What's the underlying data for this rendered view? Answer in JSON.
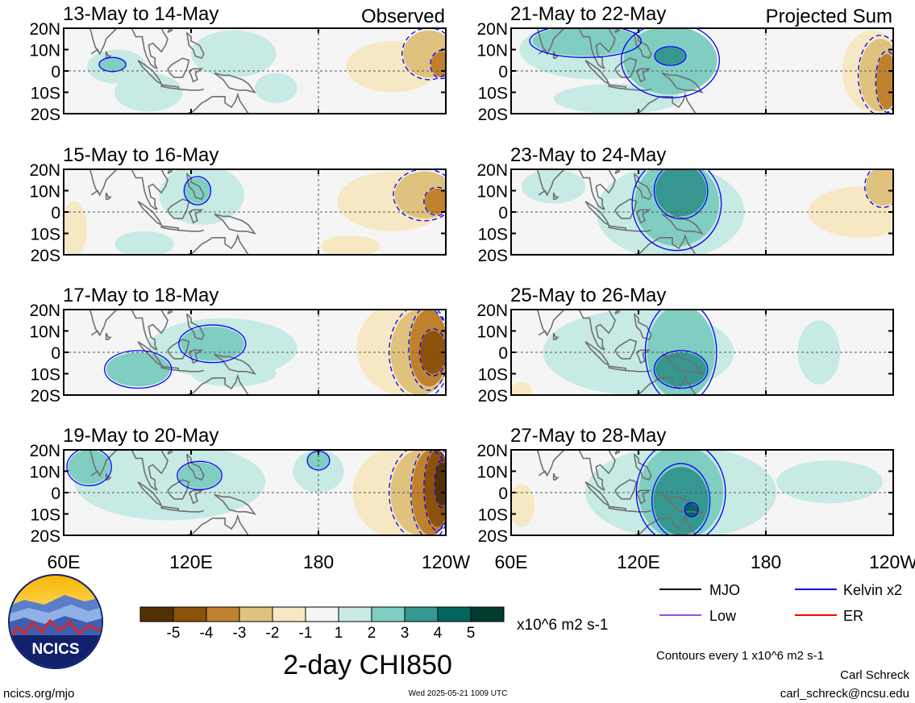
{
  "header": {
    "left_tag": "Observed",
    "right_tag": "Projected Sum"
  },
  "chart_data": {
    "type": "heatmap",
    "variable": "2-day CHI850",
    "units": "x10^6 m2 s-1",
    "lat_ticks": [
      "20N",
      "10N",
      "0",
      "10S",
      "20S"
    ],
    "lon_ticks": [
      "60E",
      "120E",
      "180",
      "120W"
    ],
    "colorbar": {
      "tick_labels": [
        "-5",
        "-4",
        "-3",
        "-2",
        "-1",
        "1",
        "2",
        "3",
        "4",
        "5"
      ],
      "colors": [
        "#543005",
        "#8c510a",
        "#bf812d",
        "#dfc27d",
        "#f6e8c3",
        "#f5f5f5",
        "#c7eae5",
        "#80cdc1",
        "#35978f",
        "#01665e",
        "#003c30"
      ]
    },
    "contour_note": "Contours every 1 x10^6 m2 s-1",
    "legend": [
      {
        "label": "MJO",
        "color": "#000000"
      },
      {
        "label": "Kelvin x2",
        "color": "#0000ff"
      },
      {
        "label": "Low",
        "color": "#9b4fd8"
      },
      {
        "label": "ER",
        "color": "#ff0000"
      }
    ],
    "panels": [
      {
        "title": "13-May to 14-May",
        "tag": "Observed",
        "blobs": [
          {
            "lon": 85,
            "lat": 2,
            "rx": 14,
            "ry": 8,
            "level": 1
          },
          {
            "lon": 83,
            "lat": 3,
            "rx": 6,
            "ry": 3,
            "level": 2
          },
          {
            "lon": 100,
            "lat": -10,
            "rx": 16,
            "ry": 9,
            "level": 1
          },
          {
            "lon": 140,
            "lat": 8,
            "rx": 20,
            "ry": 11,
            "level": 1
          },
          {
            "lon": 160,
            "lat": -8,
            "rx": 10,
            "ry": 7,
            "level": 1
          },
          {
            "lon": 215,
            "lat": 2,
            "rx": 22,
            "ry": 12,
            "level": -1
          },
          {
            "lon": 232,
            "lat": 8,
            "rx": 12,
            "ry": 11,
            "level": -2
          },
          {
            "lon": 238,
            "lat": 3,
            "rx": 5,
            "ry": 6,
            "level": -3
          }
        ]
      },
      {
        "title": "21-May to 22-May",
        "tag": "Projected Sum",
        "blobs": [
          {
            "lon": 100,
            "lat": 10,
            "rx": 36,
            "ry": 14,
            "level": 1
          },
          {
            "lon": 95,
            "lat": 14,
            "rx": 25,
            "ry": 7,
            "level": 2
          },
          {
            "lon": 135,
            "lat": 5,
            "rx": 22,
            "ry": 16,
            "level": 2
          },
          {
            "lon": 135,
            "lat": 7,
            "rx": 7,
            "ry": 4,
            "level": 3
          },
          {
            "lon": 110,
            "lat": -13,
            "rx": 30,
            "ry": 7,
            "level": 1
          },
          {
            "lon": 230,
            "lat": 0,
            "rx": 14,
            "ry": 19,
            "level": -1
          },
          {
            "lon": 234,
            "lat": -2,
            "rx": 10,
            "ry": 17,
            "level": -2
          },
          {
            "lon": 237,
            "lat": -5,
            "rx": 5,
            "ry": 13,
            "level": -3
          }
        ]
      },
      {
        "title": "15-May to 16-May",
        "tag": "",
        "blobs": [
          {
            "lon": 125,
            "lat": 8,
            "rx": 20,
            "ry": 14,
            "level": 1
          },
          {
            "lon": 123,
            "lat": 10,
            "rx": 6,
            "ry": 6,
            "level": 2
          },
          {
            "lon": 98,
            "lat": -15,
            "rx": 14,
            "ry": 6,
            "level": 1
          },
          {
            "lon": 215,
            "lat": 5,
            "rx": 26,
            "ry": 14,
            "level": -1
          },
          {
            "lon": 230,
            "lat": 8,
            "rx": 14,
            "ry": 11,
            "level": -2
          },
          {
            "lon": 236,
            "lat": 5,
            "rx": 6,
            "ry": 6,
            "level": -3
          },
          {
            "lon": 65,
            "lat": -8,
            "rx": 6,
            "ry": 13,
            "level": -1
          },
          {
            "lon": 195,
            "lat": -16,
            "rx": 14,
            "ry": 5,
            "level": -1
          }
        ]
      },
      {
        "title": "23-May to 24-May",
        "tag": "",
        "blobs": [
          {
            "lon": 135,
            "lat": 0,
            "rx": 35,
            "ry": 22,
            "level": 1
          },
          {
            "lon": 138,
            "lat": 4,
            "rx": 20,
            "ry": 20,
            "level": 2
          },
          {
            "lon": 140,
            "lat": 10,
            "rx": 12,
            "ry": 12,
            "level": 3
          },
          {
            "lon": 80,
            "lat": 12,
            "rx": 15,
            "ry": 8,
            "level": 1
          },
          {
            "lon": 225,
            "lat": 0,
            "rx": 25,
            "ry": 12,
            "level": -1
          },
          {
            "lon": 235,
            "lat": 12,
            "rx": 8,
            "ry": 9,
            "level": -2
          }
        ]
      },
      {
        "title": "17-May to 18-May",
        "tag": "",
        "blobs": [
          {
            "lon": 135,
            "lat": 2,
            "rx": 35,
            "ry": 14,
            "level": 1
          },
          {
            "lon": 130,
            "lat": 4,
            "rx": 15,
            "ry": 8,
            "level": 2
          },
          {
            "lon": 95,
            "lat": -8,
            "rx": 15,
            "ry": 8,
            "level": 2
          },
          {
            "lon": 140,
            "lat": -10,
            "rx": 20,
            "ry": 6,
            "level": 1
          },
          {
            "lon": 220,
            "lat": 2,
            "rx": 22,
            "ry": 22,
            "level": -1
          },
          {
            "lon": 228,
            "lat": 0,
            "rx": 14,
            "ry": 20,
            "level": -2
          },
          {
            "lon": 232,
            "lat": 2,
            "rx": 9,
            "ry": 18,
            "level": -3
          },
          {
            "lon": 234,
            "lat": 0,
            "rx": 6,
            "ry": 10,
            "level": -4
          }
        ]
      },
      {
        "title": "25-May to 26-May",
        "tag": "",
        "blobs": [
          {
            "lon": 120,
            "lat": 0,
            "rx": 45,
            "ry": 20,
            "level": 1
          },
          {
            "lon": 140,
            "lat": 0,
            "rx": 16,
            "ry": 22,
            "level": 2
          },
          {
            "lon": 140,
            "lat": -8,
            "rx": 12,
            "ry": 8,
            "level": 3
          },
          {
            "lon": 205,
            "lat": 0,
            "rx": 10,
            "ry": 15,
            "level": 1
          },
          {
            "lon": 65,
            "lat": -18,
            "rx": 5,
            "ry": 4,
            "level": -1
          }
        ]
      },
      {
        "title": "19-May to 20-May",
        "tag": "",
        "blobs": [
          {
            "lon": 110,
            "lat": 5,
            "rx": 45,
            "ry": 18,
            "level": 1
          },
          {
            "lon": 72,
            "lat": 12,
            "rx": 10,
            "ry": 8,
            "level": 2
          },
          {
            "lon": 124,
            "lat": 8,
            "rx": 10,
            "ry": 6,
            "level": 2
          },
          {
            "lon": 180,
            "lat": 10,
            "rx": 12,
            "ry": 10,
            "level": 1
          },
          {
            "lon": 180,
            "lat": 15,
            "rx": 5,
            "ry": 4,
            "level": 2
          },
          {
            "lon": 220,
            "lat": 0,
            "rx": 24,
            "ry": 22,
            "level": -1
          },
          {
            "lon": 228,
            "lat": 0,
            "rx": 14,
            "ry": 20,
            "level": -2
          },
          {
            "lon": 233,
            "lat": 0,
            "rx": 9,
            "ry": 20,
            "level": -3
          },
          {
            "lon": 236,
            "lat": 2,
            "rx": 6,
            "ry": 18,
            "level": -4
          },
          {
            "lon": 238,
            "lat": 4,
            "rx": 3,
            "ry": 10,
            "level": -5
          }
        ]
      },
      {
        "title": "27-May to 28-May",
        "tag": "",
        "blobs": [
          {
            "lon": 140,
            "lat": 0,
            "rx": 45,
            "ry": 22,
            "level": 1
          },
          {
            "lon": 140,
            "lat": 0,
            "rx": 20,
            "ry": 22,
            "level": 2
          },
          {
            "lon": 140,
            "lat": -4,
            "rx": 13,
            "ry": 16,
            "level": 3
          },
          {
            "lon": 145,
            "lat": -8,
            "rx": 3,
            "ry": 3,
            "level": 4
          },
          {
            "lon": 65,
            "lat": -6,
            "rx": 6,
            "ry": 10,
            "level": -1
          },
          {
            "lon": 210,
            "lat": 5,
            "rx": 25,
            "ry": 10,
            "level": 1
          }
        ]
      }
    ]
  },
  "footer": {
    "logo_text": "NCICS",
    "site": "ncics.org/mjo",
    "timestamp": "Wed 2025-05-21 1009 UTC",
    "author": "Carl Schreck",
    "email": "carl_schreck@ncsu.edu"
  }
}
